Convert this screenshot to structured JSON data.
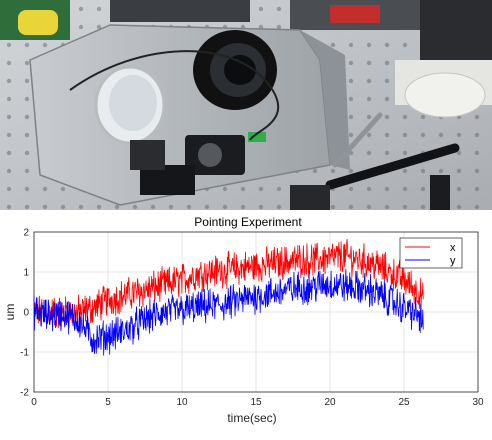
{
  "photo": {
    "description_icon": "optics-lab-photo",
    "colors": {
      "bench": "#c9ccd0",
      "plate": "#b8bcc0",
      "dark": "#1a1a1a",
      "cable": "#2a2a2a"
    }
  },
  "chart_data": {
    "type": "line",
    "title": "Pointing Experiment",
    "xlabel": "time(sec)",
    "ylabel": "um",
    "xlim": [
      0,
      30
    ],
    "ylim": [
      -2,
      2
    ],
    "xticks": [
      0,
      5,
      10,
      15,
      20,
      25,
      30
    ],
    "yticks": [
      -2,
      -1,
      0,
      1,
      2
    ],
    "grid": true,
    "legend_position": "top-right",
    "series": [
      {
        "name": "x",
        "color": "#ff0000",
        "x": [
          0,
          1,
          2,
          3,
          4,
          5,
          6,
          7,
          8,
          9,
          10,
          11,
          12,
          13,
          14,
          15,
          16,
          17,
          18,
          19,
          20,
          21,
          22,
          23,
          24,
          25,
          26,
          26.3
        ],
        "y": [
          0.0,
          0.0,
          0.0,
          0.0,
          0.1,
          0.3,
          0.4,
          0.5,
          0.6,
          0.7,
          0.8,
          0.95,
          1.0,
          1.05,
          1.1,
          1.15,
          1.2,
          1.25,
          1.3,
          1.3,
          1.35,
          1.4,
          1.3,
          1.2,
          1.0,
          0.8,
          0.5,
          0.3
        ]
      },
      {
        "name": "y",
        "color": "#0000ff",
        "x": [
          0,
          1,
          2,
          3,
          4,
          5,
          6,
          7,
          8,
          9,
          10,
          11,
          12,
          13,
          14,
          15,
          16,
          17,
          18,
          19,
          20,
          21,
          22,
          23,
          24,
          25,
          26,
          26.3
        ],
        "y": [
          0.0,
          -0.1,
          -0.05,
          -0.2,
          -0.7,
          -0.6,
          -0.5,
          -0.3,
          -0.1,
          0.0,
          0.05,
          0.1,
          0.15,
          0.2,
          0.3,
          0.4,
          0.45,
          0.55,
          0.6,
          0.65,
          0.7,
          0.65,
          0.6,
          0.5,
          0.3,
          0.1,
          -0.1,
          -0.3
        ]
      }
    ]
  }
}
